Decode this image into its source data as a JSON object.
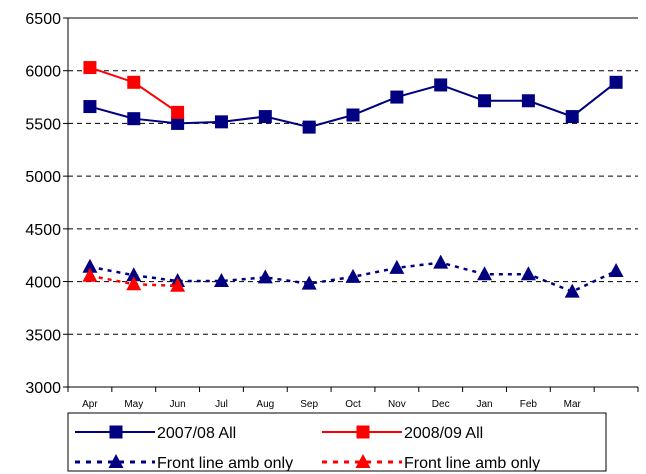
{
  "chart_data": {
    "type": "line",
    "title": "",
    "xlabel": "",
    "ylabel": "",
    "ylim": [
      3000,
      6500
    ],
    "yticks": [
      "3000",
      "3500",
      "4000",
      "4500",
      "5000",
      "5500",
      "6000",
      "6500"
    ],
    "categories": [
      "Apr",
      "May",
      "Jun",
      "Jul",
      "Aug",
      "Sep",
      "Oct",
      "Nov",
      "Dec",
      "Jan",
      "Feb",
      "Mar",
      ""
    ],
    "grid": "horizontal dashed",
    "legend_position": "bottom",
    "series": [
      {
        "name": "2007/08 All",
        "color": "#000080",
        "line": "solid",
        "marker": "square",
        "values": [
          5660,
          5545,
          5500,
          5515,
          5565,
          5465,
          5580,
          5750,
          5865,
          5715,
          5715,
          5565,
          5890
        ]
      },
      {
        "name": "2008/09 All",
        "color": "#ff0000",
        "line": "solid",
        "marker": "square",
        "values": [
          6030,
          5890,
          5605,
          null,
          null,
          null,
          null,
          null,
          null,
          null,
          null,
          null,
          null
        ]
      },
      {
        "name": "Front line amb only",
        "color": "#000080",
        "line": "dashed",
        "marker": "triangle",
        "values": [
          4140,
          4060,
          4005,
          4005,
          4040,
          3980,
          4045,
          4130,
          4180,
          4070,
          4070,
          3905,
          4100
        ]
      },
      {
        "name": "Front line amb only",
        "color": "#ff0000",
        "line": "dashed",
        "marker": "triangle",
        "values": [
          4055,
          3975,
          3960,
          null,
          null,
          null,
          null,
          null,
          null,
          null,
          null,
          null,
          null
        ]
      }
    ]
  }
}
